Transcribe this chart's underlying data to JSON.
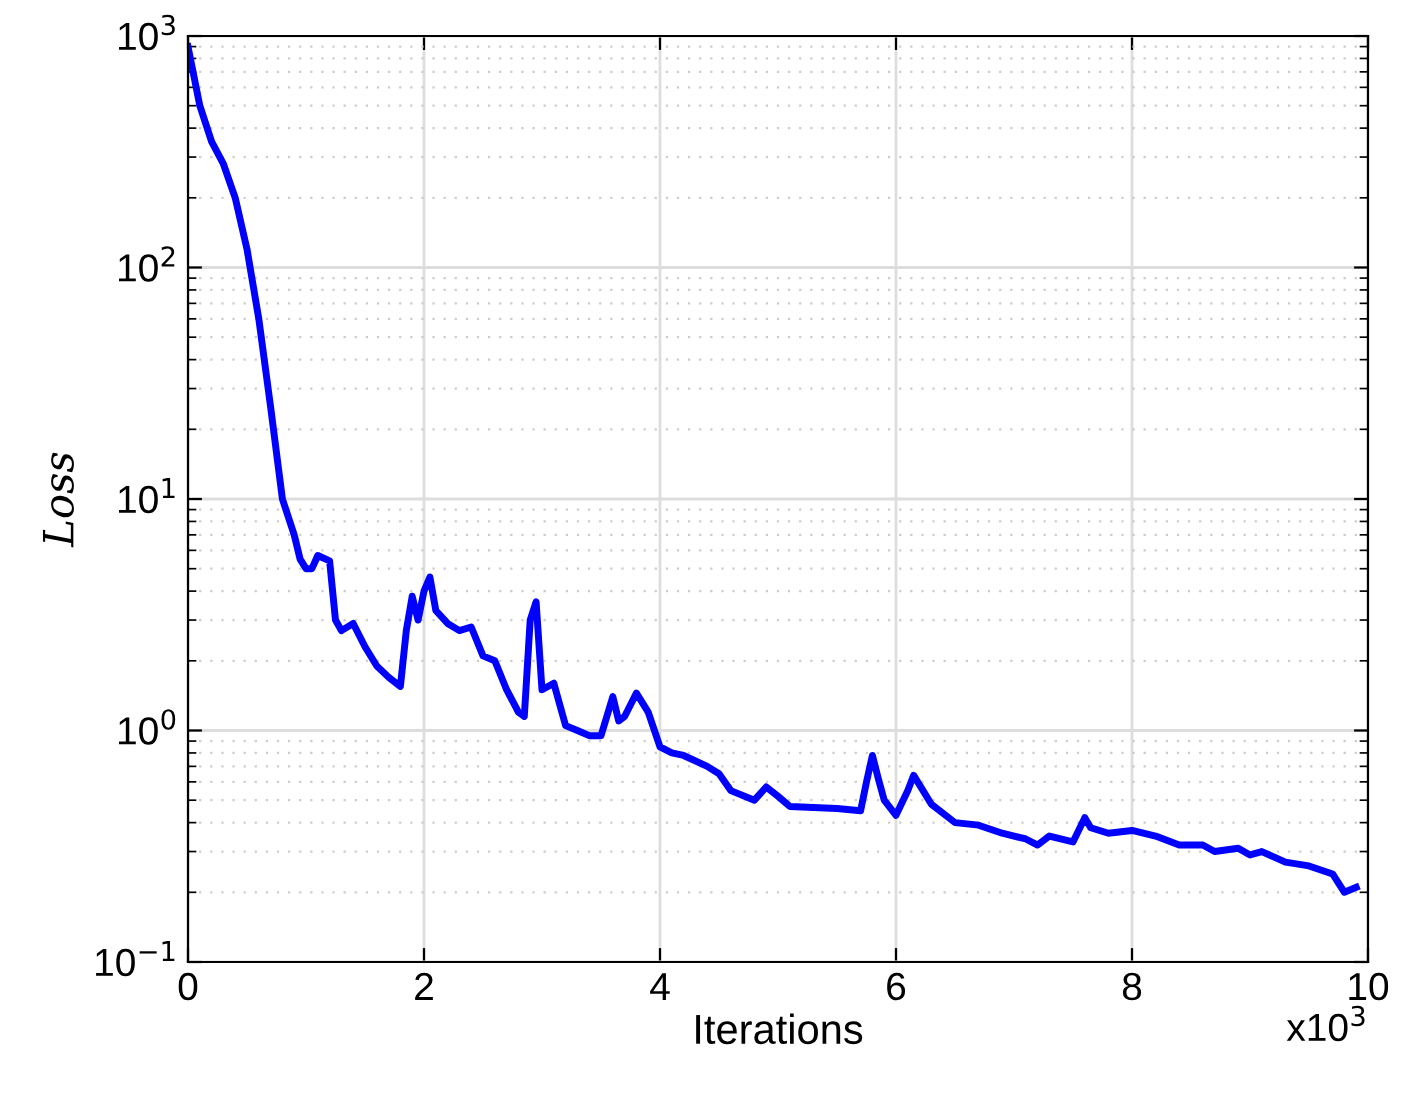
{
  "chart_data": {
    "type": "line",
    "xlabel": "Iterations",
    "ylabel": "Loss",
    "annotations": [
      "x10$^{3}$"
    ],
    "log": "y",
    "grid": true,
    "marker": "none",
    "line_style": "solid",
    "xlim": [
      0,
      10
    ],
    "xticks": [
      0,
      2,
      4,
      6,
      8,
      10
    ],
    "ylim": [
      0.1,
      1000
    ],
    "yticks": [
      {
        "value": 0.1,
        "label": "10$^{−1}$"
      },
      {
        "value": 1,
        "label": "10$^{0}$"
      },
      {
        "value": 10,
        "label": "10$^{1}$"
      },
      {
        "value": 100,
        "label": "10$^{2}$"
      },
      {
        "value": 1000,
        "label": "10$^{3}$"
      }
    ],
    "series": [
      {
        "color": "#0000ff",
        "x": [
          0,
          0.1,
          0.2,
          0.3,
          0.4,
          0.5,
          0.6,
          0.7,
          0.8,
          0.9,
          0.95,
          1.0,
          1.05,
          1.1,
          1.2,
          1.25,
          1.3,
          1.4,
          1.5,
          1.6,
          1.7,
          1.8,
          1.85,
          1.9,
          1.95,
          2.0,
          2.05,
          2.1,
          2.2,
          2.3,
          2.4,
          2.5,
          2.6,
          2.7,
          2.8,
          2.85,
          2.9,
          2.95,
          3.0,
          3.1,
          3.2,
          3.3,
          3.4,
          3.5,
          3.6,
          3.65,
          3.7,
          3.8,
          3.9,
          4.0,
          4.1,
          4.2,
          4.4,
          4.5,
          4.6,
          4.8,
          4.9,
          5.0,
          5.1,
          5.5,
          5.7,
          5.75,
          5.8,
          5.85,
          5.9,
          6.0,
          6.1,
          6.15,
          6.3,
          6.5,
          6.7,
          6.9,
          7.1,
          7.2,
          7.3,
          7.5,
          7.6,
          7.65,
          7.8,
          8.0,
          8.2,
          8.4,
          8.6,
          8.7,
          8.9,
          9.0,
          9.1,
          9.3,
          9.5,
          9.7,
          9.8,
          9.9
        ],
        "values": [
          900,
          500,
          350,
          280,
          200,
          120,
          60,
          25,
          10,
          7,
          5.5,
          5,
          5.0,
          5.7,
          5.4,
          3,
          2.7,
          2.9,
          2.3,
          1.9,
          1.7,
          1.55,
          2.7,
          3.8,
          3.0,
          4.0,
          4.6,
          3.3,
          2.9,
          2.7,
          2.8,
          2.1,
          2.0,
          1.5,
          1.2,
          1.15,
          3.0,
          3.6,
          1.5,
          1.6,
          1.05,
          1.0,
          0.95,
          0.95,
          1.4,
          1.1,
          1.15,
          1.45,
          1.2,
          0.85,
          0.8,
          0.78,
          0.7,
          0.65,
          0.55,
          0.5,
          0.57,
          0.52,
          0.47,
          0.46,
          0.45,
          0.6,
          0.78,
          0.62,
          0.5,
          0.43,
          0.55,
          0.64,
          0.48,
          0.4,
          0.39,
          0.36,
          0.34,
          0.32,
          0.35,
          0.33,
          0.42,
          0.38,
          0.36,
          0.37,
          0.35,
          0.32,
          0.32,
          0.3,
          0.31,
          0.29,
          0.3,
          0.27,
          0.26,
          0.24,
          0.2,
          0.21
        ]
      }
    ]
  }
}
